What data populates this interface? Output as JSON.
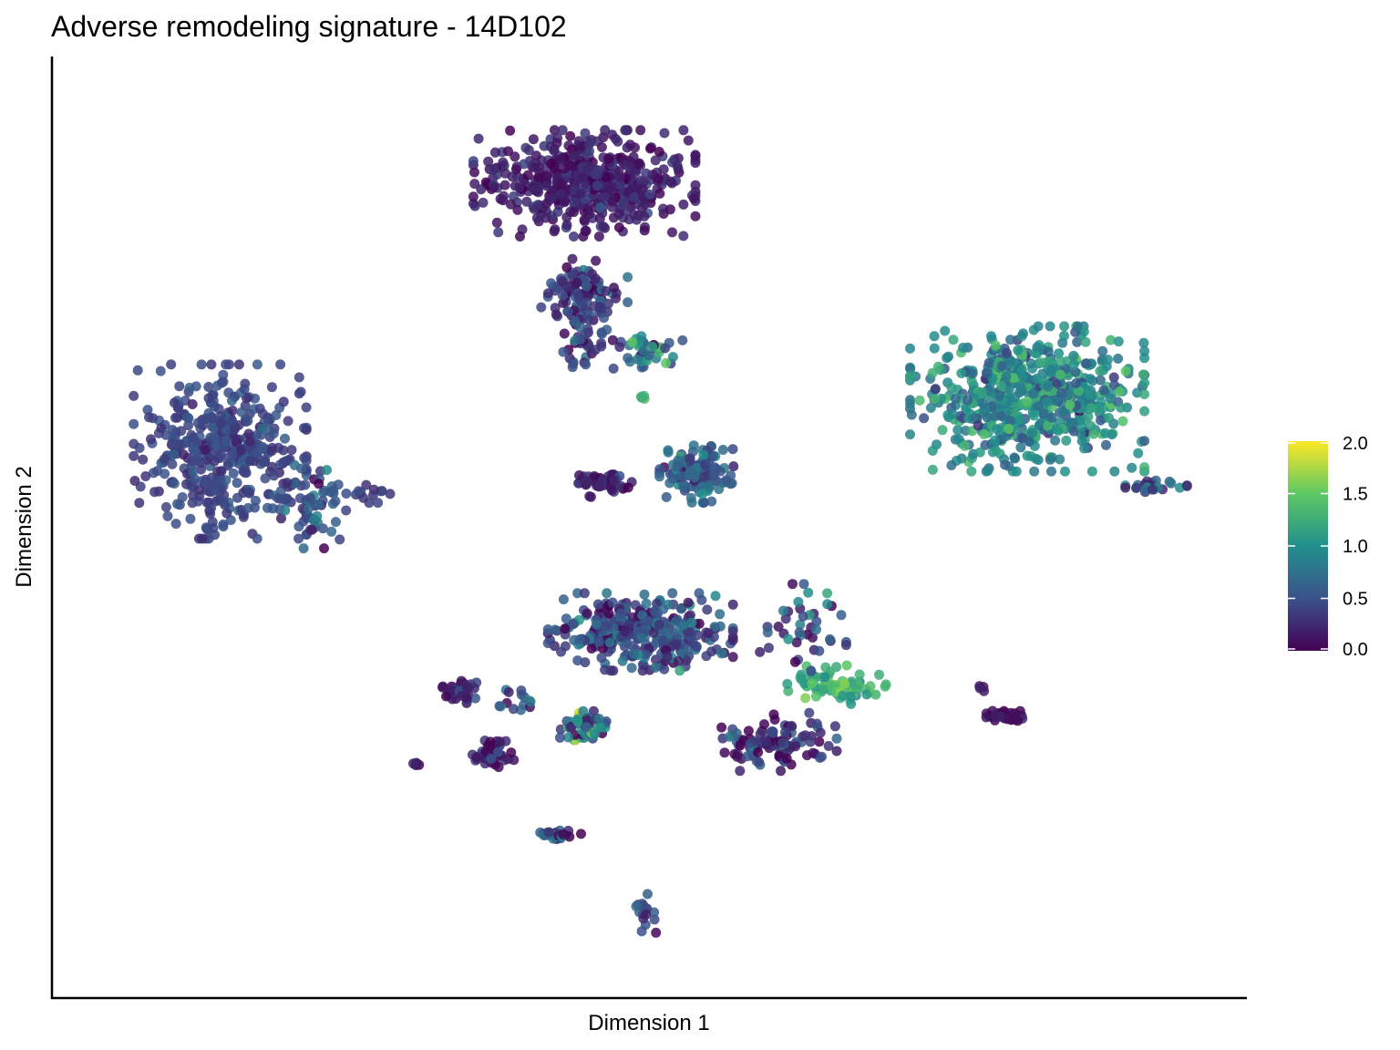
{
  "chart_data": {
    "type": "scatter",
    "title": "Adverse remodeling signature - 14D102",
    "xlabel": "Dimension 1",
    "ylabel": "Dimension 2",
    "xlim": [
      0,
      100
    ],
    "ylim": [
      0,
      100
    ],
    "grid": false,
    "colorbar": {
      "position": "right",
      "range": [
        0.0,
        2.0
      ],
      "ticks": [
        "0.0",
        "0.5",
        "1.0",
        "1.5",
        "2.0"
      ],
      "colormap": [
        "#440154",
        "#3b528b",
        "#21908c",
        "#5dc863",
        "#fde725"
      ]
    },
    "clusters": [
      {
        "center": [
          11.5,
          58.5
        ],
        "spread": [
          7.0,
          9.0
        ],
        "n": 420,
        "score_mean": 0.42,
        "score_sd": 0.1
      },
      {
        "center": [
          19.5,
          53.0
        ],
        "spread": [
          3.0,
          5.0
        ],
        "n": 60,
        "score_mean": 0.5,
        "score_sd": 0.2
      },
      {
        "center": [
          24.5,
          54.0
        ],
        "spread": [
          2.5,
          1.2
        ],
        "n": 14,
        "score_mean": 0.35,
        "score_sd": 0.12
      },
      {
        "center": [
          44.0,
          89.0
        ],
        "spread": [
          9.0,
          5.5
        ],
        "n": 480,
        "score_mean": 0.18,
        "score_sd": 0.12
      },
      {
        "center": [
          44.0,
          76.0
        ],
        "spread": [
          3.5,
          4.0
        ],
        "n": 110,
        "score_mean": 0.35,
        "score_sd": 0.2
      },
      {
        "center": [
          50.0,
          70.0
        ],
        "spread": [
          2.5,
          1.8
        ],
        "n": 40,
        "score_mean": 0.7,
        "score_sd": 0.35
      },
      {
        "center": [
          44.0,
          70.5
        ],
        "spread": [
          3.0,
          2.5
        ],
        "n": 35,
        "score_mean": 0.4,
        "score_sd": 0.2
      },
      {
        "center": [
          49.0,
          64.5
        ],
        "spread": [
          0.4,
          0.3
        ],
        "n": 4,
        "score_mean": 1.3,
        "score_sd": 0.1
      },
      {
        "center": [
          54.0,
          56.0
        ],
        "spread": [
          3.0,
          3.0
        ],
        "n": 150,
        "score_mean": 0.55,
        "score_sd": 0.2
      },
      {
        "center": [
          45.5,
          55.0
        ],
        "spread": [
          2.5,
          1.5
        ],
        "n": 50,
        "score_mean": 0.2,
        "score_sd": 0.15
      },
      {
        "center": [
          83.5,
          64.5
        ],
        "spread": [
          9.5,
          7.5
        ],
        "n": 620,
        "score_mean": 0.95,
        "score_sd": 0.25
      },
      {
        "center": [
          95.0,
          54.5
        ],
        "spread": [
          2.5,
          0.8
        ],
        "n": 25,
        "score_mean": 0.5,
        "score_sd": 0.25
      },
      {
        "center": [
          49.0,
          38.0
        ],
        "spread": [
          7.5,
          4.0
        ],
        "n": 320,
        "score_mean": 0.45,
        "score_sd": 0.25
      },
      {
        "center": [
          66.5,
          32.0
        ],
        "spread": [
          4.0,
          2.0
        ],
        "n": 70,
        "score_mean": 1.3,
        "score_sd": 0.2
      },
      {
        "center": [
          61.0,
          25.5
        ],
        "spread": [
          5.0,
          3.0
        ],
        "n": 110,
        "score_mean": 0.3,
        "score_sd": 0.25
      },
      {
        "center": [
          63.5,
          38.5
        ],
        "spread": [
          3.5,
          4.5
        ],
        "n": 40,
        "score_mean": 0.4,
        "score_sd": 0.3
      },
      {
        "center": [
          33.0,
          31.0
        ],
        "spread": [
          1.5,
          1.3
        ],
        "n": 35,
        "score_mean": 0.25,
        "score_sd": 0.15
      },
      {
        "center": [
          36.0,
          24.0
        ],
        "spread": [
          1.8,
          1.5
        ],
        "n": 45,
        "score_mean": 0.2,
        "score_sd": 0.15
      },
      {
        "center": [
          44.0,
          27.0
        ],
        "spread": [
          2.0,
          1.8
        ],
        "n": 55,
        "score_mean": 0.7,
        "score_sd": 0.35
      },
      {
        "center": [
          38.5,
          30.0
        ],
        "spread": [
          2.5,
          2.0
        ],
        "n": 14,
        "score_mean": 0.6,
        "score_sd": 0.4
      },
      {
        "center": [
          29.0,
          23.0
        ],
        "spread": [
          0.6,
          0.3
        ],
        "n": 6,
        "score_mean": 0.15,
        "score_sd": 0.1
      },
      {
        "center": [
          41.5,
          15.0
        ],
        "spread": [
          2.0,
          0.5
        ],
        "n": 30,
        "score_mean": 0.4,
        "score_sd": 0.35
      },
      {
        "center": [
          49.5,
          6.0
        ],
        "spread": [
          0.8,
          2.0
        ],
        "n": 16,
        "score_mean": 0.4,
        "score_sd": 0.2
      },
      {
        "center": [
          81.5,
          28.5
        ],
        "spread": [
          2.0,
          0.7
        ],
        "n": 40,
        "score_mean": 0.1,
        "score_sd": 0.08
      },
      {
        "center": [
          79.5,
          31.5
        ],
        "spread": [
          0.3,
          0.3
        ],
        "n": 4,
        "score_mean": 0.1,
        "score_sd": 0.05
      }
    ]
  }
}
